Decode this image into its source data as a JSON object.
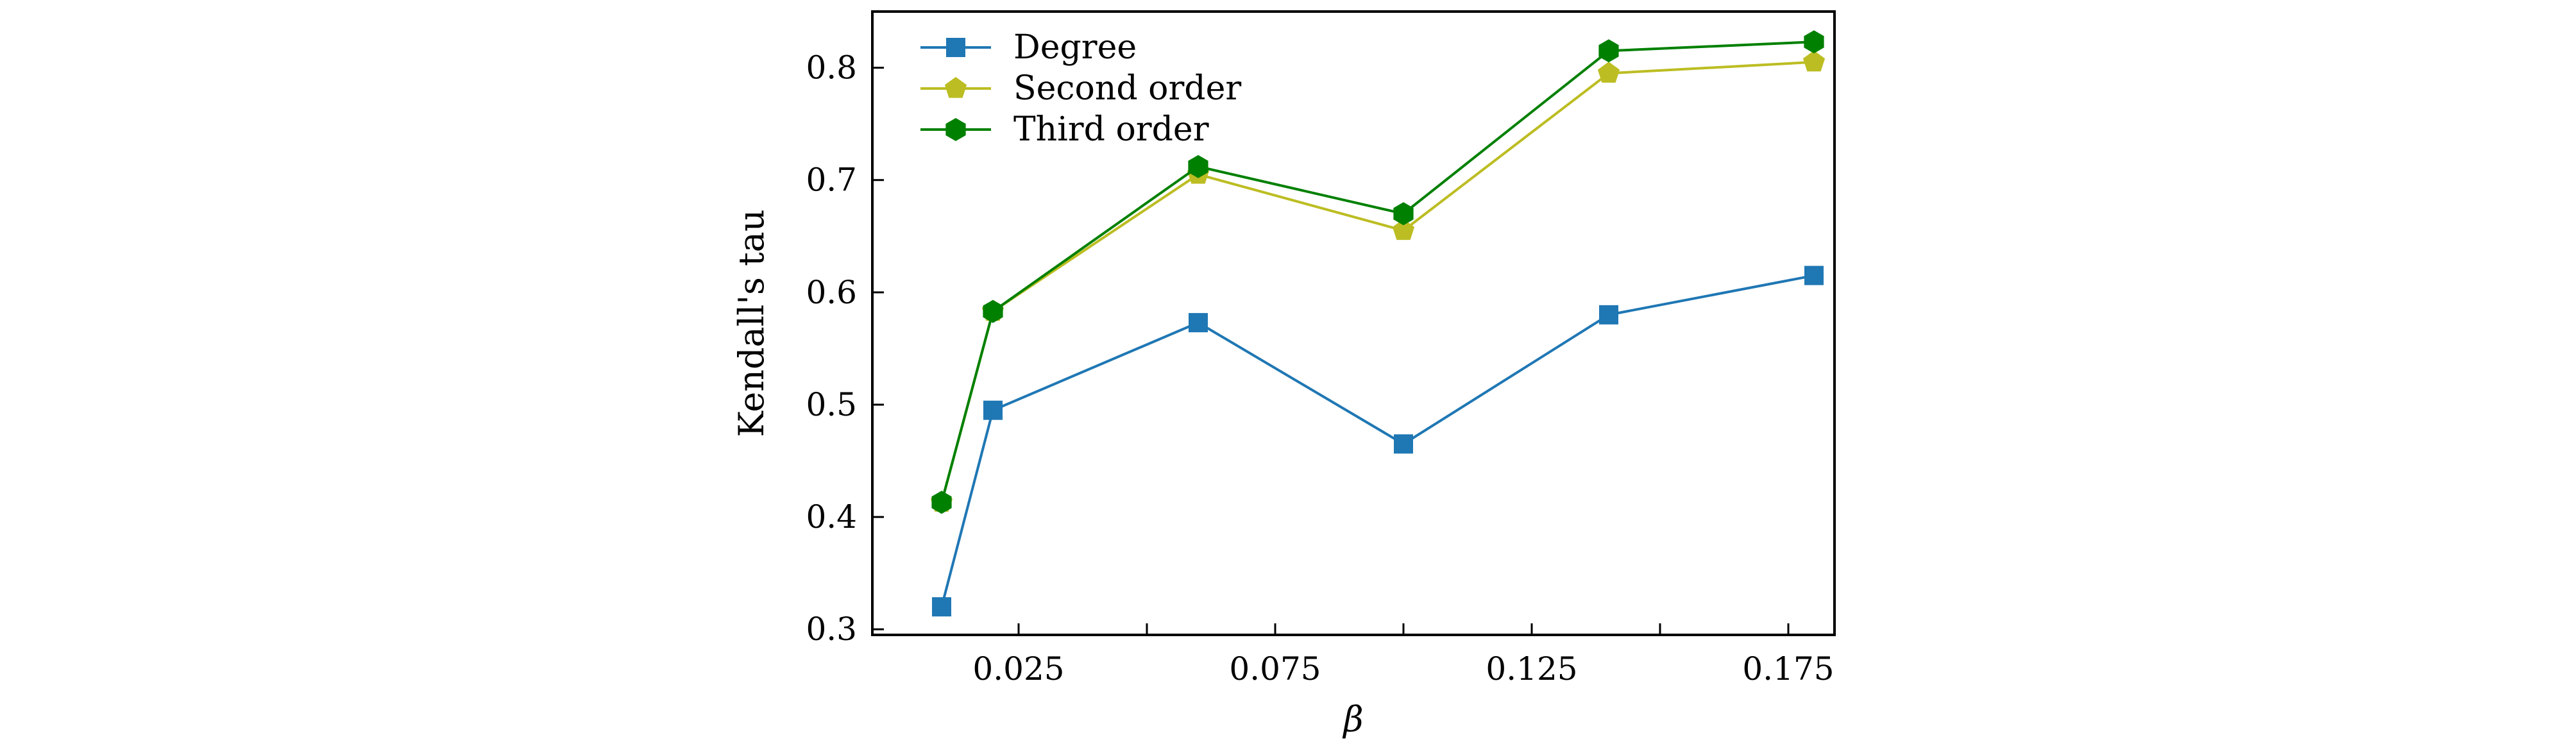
{
  "chart_data": {
    "type": "line",
    "title": "",
    "xlabel": "β",
    "ylabel": "Kendall's tau",
    "x": [
      0.01,
      0.02,
      0.06,
      0.1,
      0.14,
      0.18
    ],
    "xlim": [
      -0.0035,
      0.184
    ],
    "ylim": [
      0.295,
      0.85
    ],
    "xticks": [
      0.025,
      0.075,
      0.125,
      0.175
    ],
    "xtick_labels": [
      "0.025",
      "0.075",
      "0.125",
      "0.175"
    ],
    "minor_xticks": [
      0.05,
      0.1,
      0.15
    ],
    "yticks": [
      0.3,
      0.4,
      0.5,
      0.6,
      0.7,
      0.8
    ],
    "ytick_labels": [
      "0.3",
      "0.4",
      "0.5",
      "0.6",
      "0.7",
      "0.8"
    ],
    "grid": false,
    "legend_position": "top-left",
    "series": [
      {
        "name": "Degree",
        "color": "#1f77b4",
        "marker": "square",
        "values": [
          0.32,
          0.495,
          0.573,
          0.465,
          0.58,
          0.615
        ]
      },
      {
        "name": "Second order",
        "color": "#bcbd22",
        "marker": "pentagon",
        "values": [
          0.413,
          0.583,
          0.705,
          0.655,
          0.795,
          0.805
        ]
      },
      {
        "name": "Third order",
        "color": "#008000",
        "marker": "hexagon",
        "values": [
          0.413,
          0.583,
          0.712,
          0.67,
          0.815,
          0.823
        ]
      }
    ]
  }
}
